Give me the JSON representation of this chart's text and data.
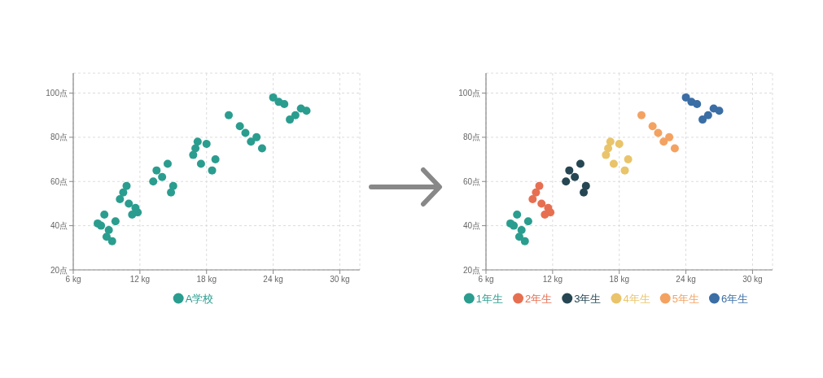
{
  "chart_data": [
    {
      "type": "scatter",
      "xlim": [
        6,
        31.8
      ],
      "xticks": [
        {
          "value": 6,
          "label": "6 kg"
        },
        {
          "value": 12,
          "label": "12 kg"
        },
        {
          "value": 18,
          "label": "18 kg"
        },
        {
          "value": 24,
          "label": "24 kg"
        },
        {
          "value": 30,
          "label": "30 kg"
        }
      ],
      "ylim": [
        20,
        109
      ],
      "yticks": [
        {
          "value": 20,
          "label": "20点"
        },
        {
          "value": 40,
          "label": "40点"
        },
        {
          "value": 60,
          "label": "60点"
        },
        {
          "value": 80,
          "label": "80点"
        },
        {
          "value": 100,
          "label": "100点"
        }
      ],
      "grid": true,
      "legend": "bottom",
      "marker": "circle",
      "series": [
        {
          "name": "A学校",
          "color": "#2a9d8f",
          "x": [
            8.2,
            8.5,
            8.8,
            9.2,
            9.0,
            9.5,
            9.8,
            10.2,
            10.5,
            10.8,
            11.0,
            11.6,
            11.3,
            11.8,
            13.2,
            13.5,
            14.0,
            14.5,
            15.0,
            14.8,
            16.8,
            17.0,
            17.2,
            17.5,
            18.0,
            18.5,
            18.8,
            20,
            21,
            21.5,
            22,
            22.5,
            23,
            24,
            24.5,
            25,
            25.5,
            26,
            26.5,
            27
          ],
          "values": [
            41,
            40,
            45,
            38,
            35,
            33,
            42,
            52,
            55,
            58,
            50,
            48,
            45,
            46,
            60,
            65,
            62,
            68,
            58,
            55,
            72,
            75,
            78,
            68,
            77,
            65,
            70,
            90,
            85,
            82,
            78,
            80,
            75,
            98,
            96,
            95,
            88,
            90,
            93,
            92
          ]
        }
      ]
    },
    {
      "type": "scatter",
      "xlim": [
        6,
        31.8
      ],
      "xticks": [
        {
          "value": 6,
          "label": "6 kg"
        },
        {
          "value": 12,
          "label": "12 kg"
        },
        {
          "value": 18,
          "label": "18 kg"
        },
        {
          "value": 24,
          "label": "24 kg"
        },
        {
          "value": 30,
          "label": "30 kg"
        }
      ],
      "ylim": [
        20,
        109
      ],
      "yticks": [
        {
          "value": 20,
          "label": "20点"
        },
        {
          "value": 40,
          "label": "40点"
        },
        {
          "value": 60,
          "label": "60点"
        },
        {
          "value": 80,
          "label": "80点"
        },
        {
          "value": 100,
          "label": "100点"
        }
      ],
      "grid": true,
      "legend": "bottom",
      "marker": "circle",
      "series": [
        {
          "name": "1年生",
          "color": "#2a9d8f",
          "x": [
            8.2,
            8.5,
            8.8,
            9.2,
            9.0,
            9.5,
            9.8
          ],
          "values": [
            41,
            40,
            45,
            38,
            35,
            33,
            42
          ]
        },
        {
          "name": "2年生",
          "color": "#e76f51",
          "x": [
            10.2,
            10.5,
            10.8,
            11.0,
            11.6,
            11.3,
            11.8
          ],
          "values": [
            52,
            55,
            58,
            50,
            48,
            45,
            46
          ]
        },
        {
          "name": "3年生",
          "color": "#264653",
          "x": [
            13.2,
            13.5,
            14.0,
            14.5,
            15.0,
            14.8
          ],
          "values": [
            60,
            65,
            62,
            68,
            58,
            55
          ]
        },
        {
          "name": "4年生",
          "color": "#e9c46a",
          "x": [
            16.8,
            17.0,
            17.2,
            17.5,
            18.0,
            18.5,
            18.8
          ],
          "values": [
            72,
            75,
            78,
            68,
            77,
            65,
            70
          ]
        },
        {
          "name": "5年生",
          "color": "#f4a261",
          "x": [
            20,
            21,
            21.5,
            22,
            22.5,
            23
          ],
          "values": [
            90,
            85,
            82,
            78,
            80,
            75
          ]
        },
        {
          "name": "6年生",
          "color": "#3a6ea5",
          "x": [
            24,
            24.5,
            25,
            25.5,
            26,
            26.5,
            27
          ],
          "values": [
            98,
            96,
            95,
            88,
            90,
            93,
            92
          ]
        }
      ]
    }
  ]
}
